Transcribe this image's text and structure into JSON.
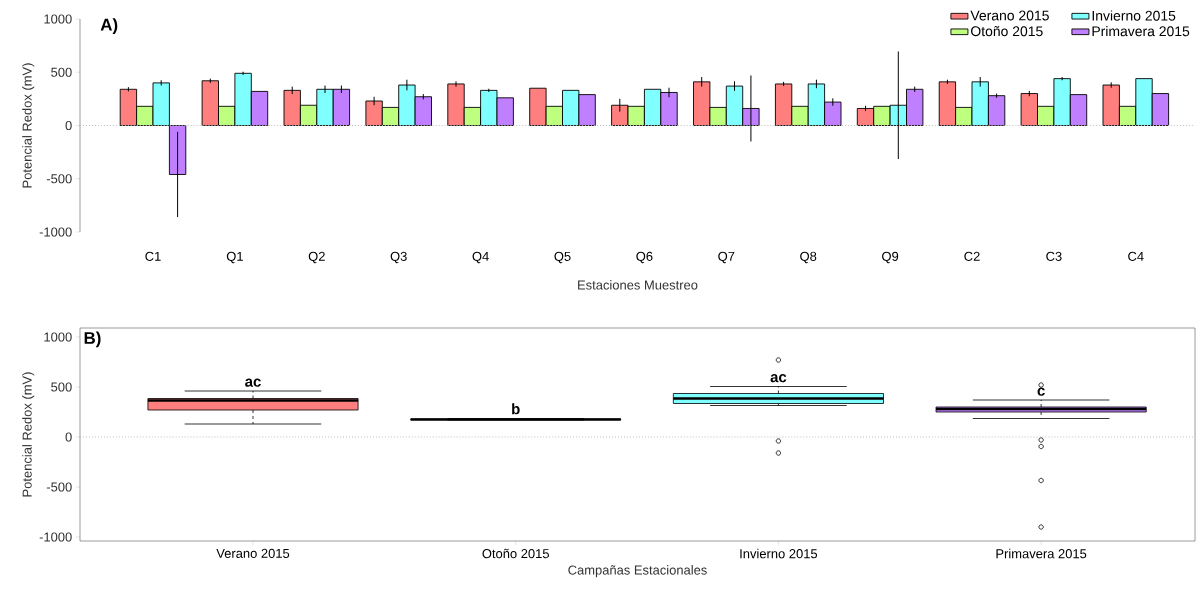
{
  "chart_data": [
    {
      "type": "bar",
      "annotations": [
        "A)"
      ],
      "xlabel": "Estaciones Muestreo",
      "ylabel": "Potencial Redox (mV)",
      "categories": [
        "C1",
        "Q1",
        "Q2",
        "Q3",
        "Q4",
        "Q5",
        "Q6",
        "Q7",
        "Q8",
        "Q9",
        "C2",
        "C3",
        "C4"
      ],
      "series": [
        {
          "name": "Verano 2015",
          "color": "#ff7f7f",
          "values": [
            340,
            420,
            330,
            230,
            390,
            350,
            190,
            410,
            390,
            160,
            410,
            300,
            380
          ],
          "errors": [
            20,
            20,
            35,
            40,
            25,
            null,
            60,
            45,
            20,
            25,
            20,
            25,
            25
          ]
        },
        {
          "name": "Otoño 2015",
          "color": "#bfff7f",
          "values": [
            180,
            180,
            190,
            170,
            170,
            180,
            180,
            170,
            180,
            180,
            170,
            180,
            180
          ],
          "errors": [
            null,
            null,
            null,
            null,
            null,
            null,
            null,
            null,
            null,
            null,
            null,
            null,
            null
          ]
        },
        {
          "name": "Invierno 2015",
          "color": "#7fffff",
          "values": [
            400,
            490,
            340,
            380,
            330,
            330,
            340,
            370,
            390,
            190,
            410,
            440,
            440
          ],
          "errors": [
            25,
            15,
            35,
            50,
            15,
            null,
            null,
            45,
            40,
            505,
            45,
            15,
            null
          ]
        },
        {
          "name": "Primavera 2015",
          "color": "#bf7fff",
          "values": [
            -460,
            320,
            340,
            270,
            260,
            290,
            310,
            160,
            220,
            340,
            280,
            290,
            300
          ],
          "errors": [
            400,
            null,
            35,
            25,
            null,
            null,
            45,
            310,
            35,
            25,
            20,
            null,
            null
          ]
        }
      ],
      "ylim": [
        -1000,
        1000
      ],
      "yticks": [
        -1000,
        -500,
        0,
        500,
        1000
      ],
      "ref_lines": [
        {
          "axis": "y",
          "value": 0,
          "color": "#bebebe",
          "line_style": "dotted"
        }
      ],
      "legend": "top right"
    },
    {
      "type": "box",
      "annotations": [
        "B)",
        "ac",
        "b",
        "ac",
        "c"
      ],
      "xlabel": "Campañas Estacionales",
      "ylabel": "Potencial Redox (mV)",
      "categories": [
        "Verano 2015",
        "Otoño 2015",
        "Invierno 2015",
        "Primavera 2015"
      ],
      "colors": [
        "#ff7f7f",
        "#bfff7f",
        "#7fffff",
        "#bf7fff"
      ],
      "boxes": [
        {
          "low": 130,
          "q1": 270,
          "median": 365,
          "q3": 385,
          "high": 460
        },
        {
          "low": 170,
          "q1": 175,
          "median": 175,
          "q3": 180,
          "high": 185
        },
        {
          "low": 315,
          "q1": 335,
          "median": 385,
          "q3": 435,
          "high": 505,
          "outliers": [
            770,
            -40,
            -160
          ]
        },
        {
          "low": 185,
          "q1": 250,
          "median": 280,
          "q3": 300,
          "high": 370,
          "outliers": [
            520,
            -30,
            -95,
            -435,
            -900
          ]
        }
      ],
      "ylim": [
        -1040,
        1090
      ],
      "yticks": [
        -1000,
        -500,
        0,
        500,
        1000
      ],
      "ref_lines": [
        {
          "axis": "y",
          "value": 0,
          "color": "#bebebe",
          "line_style": "dotted"
        }
      ]
    }
  ]
}
